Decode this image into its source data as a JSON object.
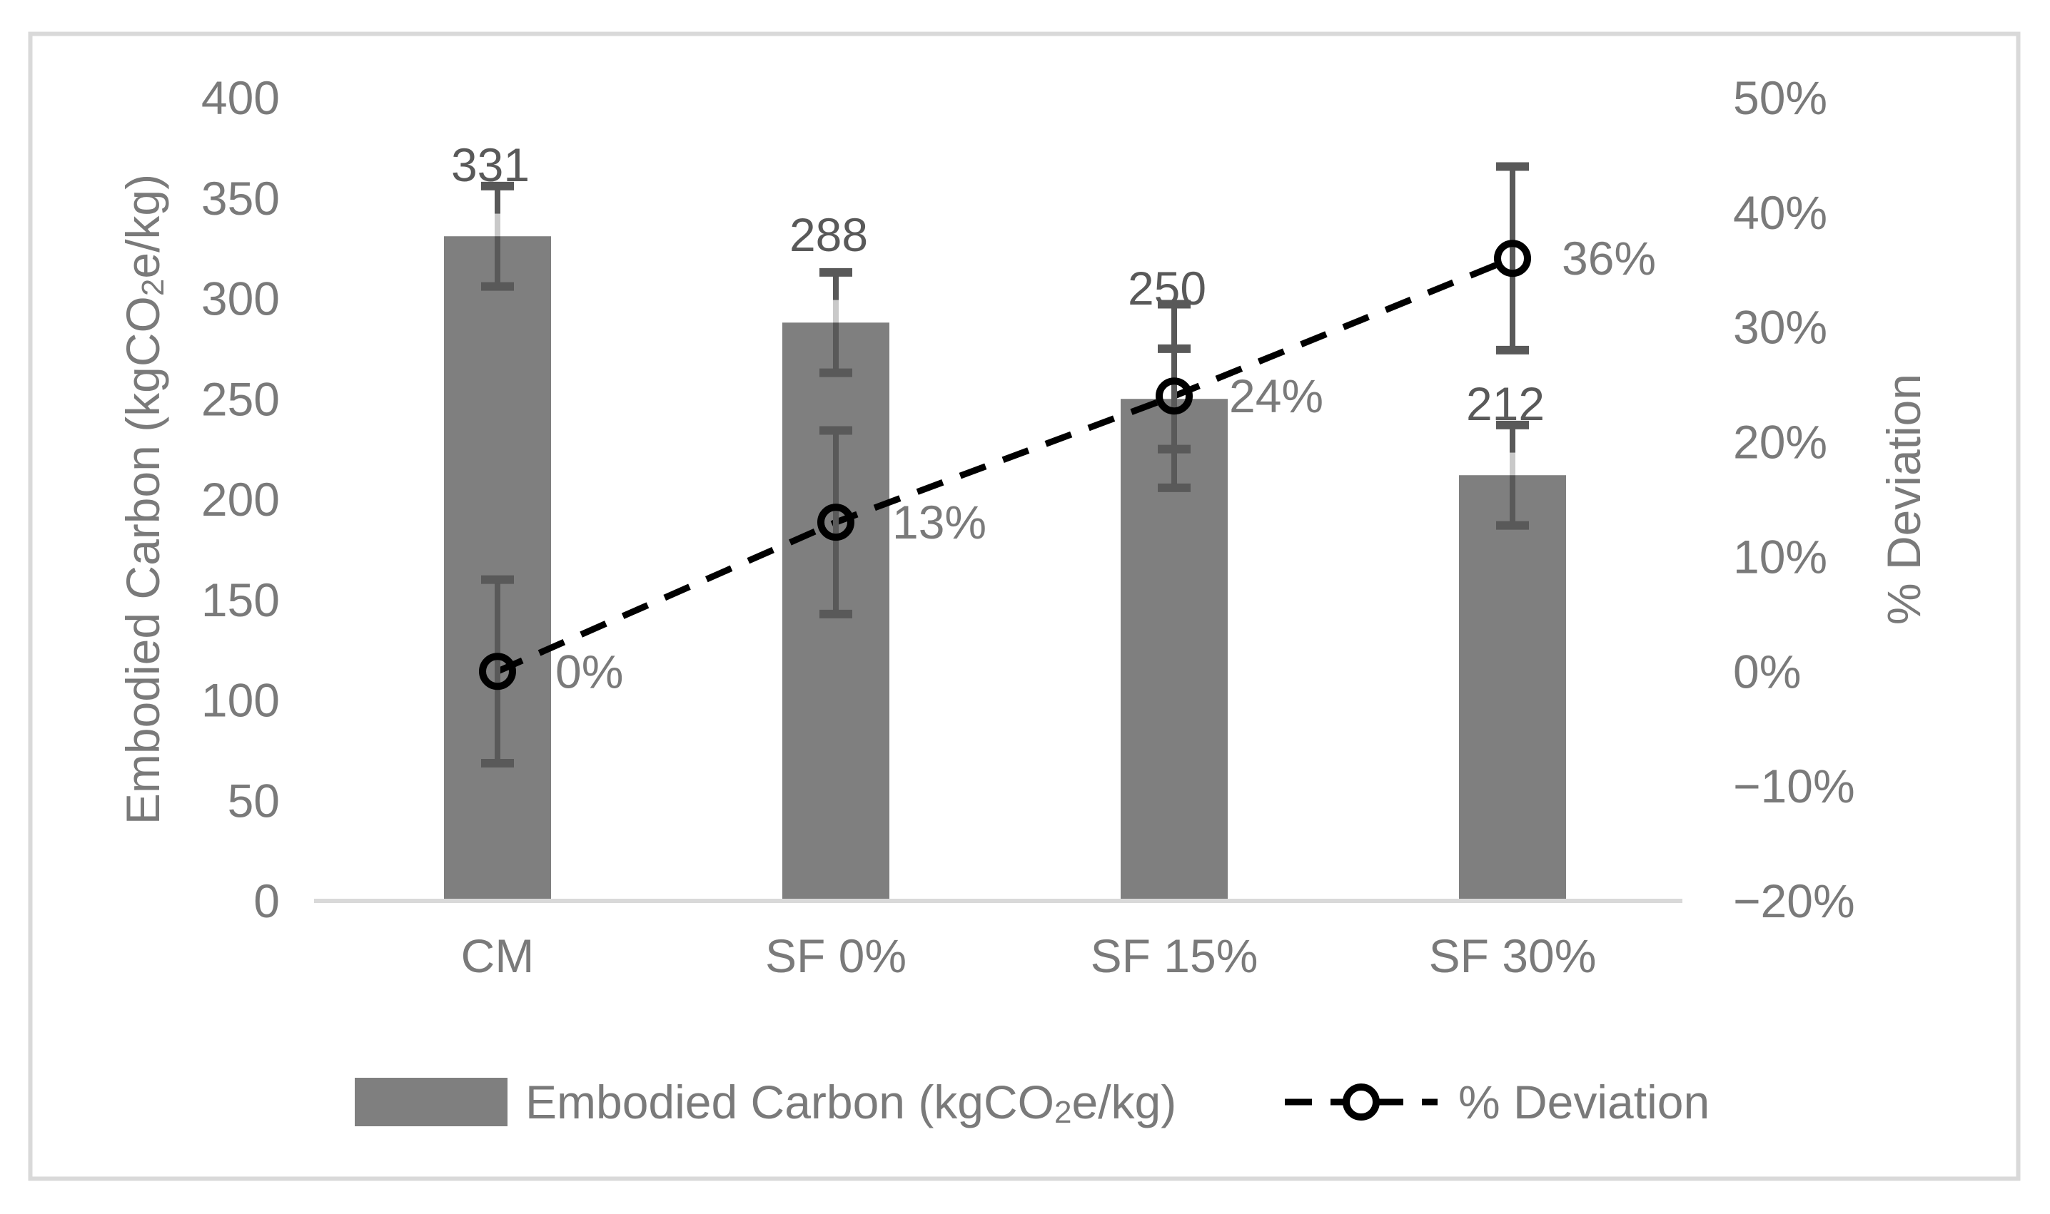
{
  "chart_data": {
    "type": "bar+line",
    "categories": [
      "CM",
      "SF 0%",
      "SF 15%",
      "SF 30%"
    ],
    "series": [
      {
        "name": "Embodied Carbon (kgCO2e/kg)",
        "name_parts": {
          "pre": "Embodied Carbon (kgCO",
          "sub": "2",
          "post": "e/kg)"
        },
        "type": "bar",
        "values": [
          331,
          288,
          250,
          212
        ],
        "data_labels": [
          "331",
          "288",
          "250",
          "212"
        ],
        "error_bar": 25,
        "axis": "left"
      },
      {
        "name": "% Deviation",
        "type": "line",
        "line_style": "dashed",
        "marker": "open-circle",
        "values_pct": [
          0,
          13,
          24,
          36
        ],
        "data_labels": [
          "0%",
          "13%",
          "24%",
          "36%"
        ],
        "error_bar_pct": 8,
        "axis": "right"
      }
    ],
    "left_axis": {
      "title": "Embodied Carbon (kgCO2e/kg)",
      "title_parts": {
        "pre": "Embodied Carbon (kgCO",
        "sub": "2",
        "post": "e/kg)"
      },
      "min": 0,
      "max": 400,
      "tick_step": 50,
      "tick_labels": [
        "400",
        "350",
        "300",
        "250",
        "200",
        "150",
        "100",
        "50",
        "0"
      ]
    },
    "right_axis": {
      "title": "% Deviation",
      "min": -20,
      "max": 50,
      "tick_step": 10,
      "tick_labels": [
        "50%",
        "40%",
        "30%",
        "20%",
        "10%",
        "0%",
        "−10%",
        "−20%"
      ]
    },
    "legend": {
      "position": "bottom",
      "entries": [
        {
          "swatch": "bar",
          "label": "Embodied Carbon (kgCO2e/kg)",
          "label_parts": {
            "pre": "Embodied Carbon (kgCO",
            "sub": "2",
            "post": "e/kg)"
          }
        },
        {
          "swatch": "dashed-line-circle",
          "label": "% Deviation"
        }
      ]
    },
    "grid": "off",
    "colors": {
      "bar_fill": "#7f7f7f",
      "error_bar": "#595959",
      "error_bar_faded": "#c9c9c9",
      "line": "#000000",
      "marker_stroke": "#000000",
      "axis_line": "#d9d9d9",
      "tick_label": "#7a7a7a",
      "data_label": "#595959",
      "pct_label": "#7a7a7a",
      "legend_text": "#7a7a7a",
      "border": "#d9d9d9",
      "background": "#ffffff"
    }
  }
}
